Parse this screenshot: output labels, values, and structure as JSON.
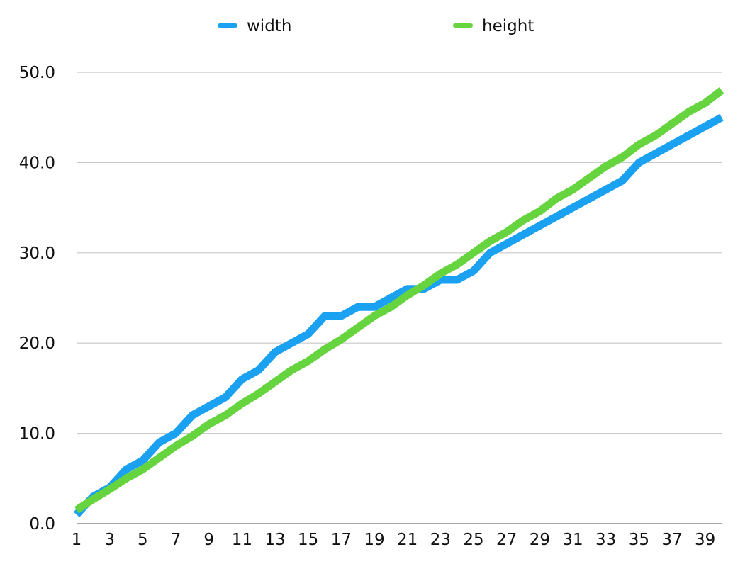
{
  "chart_data": {
    "type": "line",
    "title": "",
    "xlabel": "",
    "ylabel": "",
    "x": [
      1,
      2,
      3,
      4,
      5,
      6,
      7,
      8,
      9,
      10,
      11,
      12,
      13,
      14,
      15,
      16,
      17,
      18,
      19,
      20,
      21,
      22,
      23,
      24,
      25,
      26,
      27,
      28,
      29,
      30,
      31,
      32,
      33,
      34,
      35,
      36,
      37,
      38,
      39,
      40
    ],
    "x_tick_labels": [
      "1",
      "3",
      "5",
      "7",
      "9",
      "11",
      "13",
      "15",
      "17",
      "19",
      "21",
      "23",
      "25",
      "27",
      "29",
      "31",
      "33",
      "35",
      "37",
      "39"
    ],
    "y_tick_labels": [
      "0.0",
      "10.0",
      "20.0",
      "30.0",
      "40.0",
      "50.0"
    ],
    "ylim": [
      0,
      50
    ],
    "y_ticks": [
      0,
      10,
      20,
      30,
      40,
      50
    ],
    "grid": true,
    "legend_position": "top-center",
    "series": [
      {
        "name": "width",
        "color": "#1BA1F2",
        "values": [
          1,
          3,
          4,
          6,
          7,
          9,
          10,
          12,
          13,
          14,
          16,
          17,
          19,
          20,
          21,
          23,
          23,
          24,
          24,
          25,
          26,
          26,
          27,
          27,
          28,
          30,
          31,
          32,
          33,
          34,
          35,
          36,
          37,
          38,
          40,
          41,
          42,
          43,
          44,
          45
        ]
      },
      {
        "name": "height",
        "color": "#66D43F",
        "values": [
          1.5,
          2.7,
          3.8,
          5,
          6,
          7.3,
          8.6,
          9.7,
          11,
          12,
          13.3,
          14.4,
          15.7,
          17,
          18,
          19.3,
          20.4,
          21.7,
          23,
          24,
          25.3,
          26.4,
          27.7,
          28.7,
          30,
          31.3,
          32.3,
          33.6,
          34.6,
          36,
          37,
          38.3,
          39.6,
          40.6,
          42,
          43,
          44.3,
          45.6,
          46.6,
          48
        ]
      }
    ]
  }
}
